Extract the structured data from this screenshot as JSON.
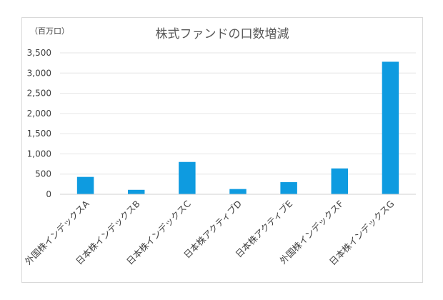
{
  "chart_data": {
    "type": "bar",
    "title": "株式ファンドの口数増減",
    "unit_label": "（百万口）",
    "categories": [
      "外国株インデックスA",
      "日本株インデックスB",
      "日本株インデックスC",
      "日本株アクティブD",
      "日本株アクティブE",
      "外国株インデックスF",
      "日本株インデックスG"
    ],
    "values": [
      430,
      110,
      800,
      130,
      300,
      640,
      3280
    ],
    "ylim": [
      0,
      3500
    ],
    "yticks": [
      "0",
      "500",
      "1,000",
      "1,500",
      "2,000",
      "2,500",
      "3,000",
      "3,500"
    ],
    "ytick_values": [
      0,
      500,
      1000,
      1500,
      2000,
      2500,
      3000,
      3500
    ],
    "bar_color": "#0e9be0",
    "grid": true,
    "legend": "none"
  }
}
